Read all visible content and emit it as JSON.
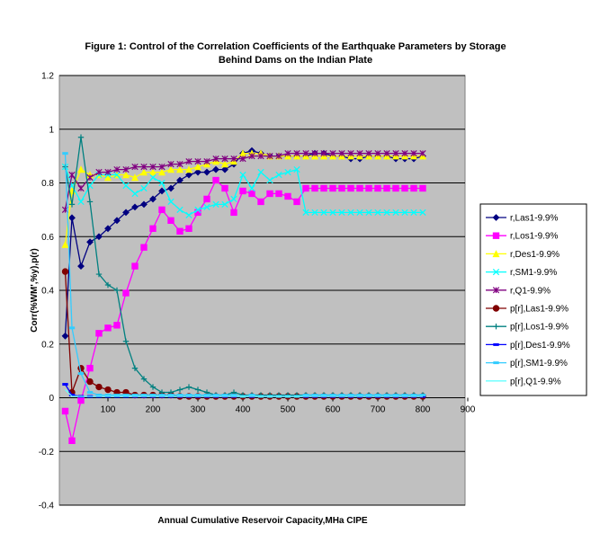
{
  "chart_data": {
    "type": "line",
    "title_line1": "Figure 1: Control of the Correlation Coefficients of  the Earthquake Parameters by Storage",
    "title_line2": "Behind Dams on the Indian Plate",
    "xlabel": "Annual Cumulative Reservoir Capacity,MHa CIPE",
    "ylabel": "Corr(%WM',%y),p(r)",
    "xlim": [
      0,
      900
    ],
    "ylim": [
      -0.4,
      1.2
    ],
    "xticks": [
      100,
      200,
      300,
      400,
      500,
      600,
      700,
      800,
      900
    ],
    "yticks": [
      -0.4,
      -0.2,
      0,
      0.2,
      0.4,
      0.6,
      0.8,
      1,
      1.2
    ],
    "ytick_labels": [
      "-0.4",
      "-0.2",
      "0",
      "0.2",
      "0.4",
      "0.6",
      "0.8",
      "1",
      "1.2"
    ],
    "plot_background": "#c0c0c0",
    "gridlines": "horizontal",
    "legend_position": "right",
    "x": [
      5,
      20,
      40,
      60,
      80,
      100,
      120,
      140,
      160,
      180,
      200,
      220,
      240,
      260,
      280,
      300,
      320,
      340,
      360,
      380,
      400,
      420,
      440,
      460,
      480,
      500,
      520,
      540,
      560,
      580,
      600,
      620,
      640,
      660,
      680,
      700,
      720,
      740,
      760,
      780,
      800
    ],
    "series": [
      {
        "name": "r,Las1-9.9%",
        "color": "#000080",
        "marker": "diamond",
        "values": [
          0.23,
          0.67,
          0.49,
          0.58,
          0.6,
          0.63,
          0.66,
          0.69,
          0.71,
          0.72,
          0.74,
          0.77,
          0.78,
          0.81,
          0.83,
          0.84,
          0.84,
          0.85,
          0.85,
          0.87,
          0.91,
          0.92,
          0.91,
          0.9,
          0.9,
          0.9,
          0.9,
          0.9,
          0.91,
          0.91,
          0.9,
          0.9,
          0.89,
          0.89,
          0.9,
          0.9,
          0.9,
          0.89,
          0.89,
          0.89,
          0.9
        ]
      },
      {
        "name": "r,Los1-9.9%",
        "color": "#ff00ff",
        "marker": "square",
        "values": [
          -0.05,
          -0.16,
          -0.01,
          0.11,
          0.24,
          0.26,
          0.27,
          0.39,
          0.49,
          0.56,
          0.63,
          0.7,
          0.66,
          0.62,
          0.63,
          0.69,
          0.74,
          0.81,
          0.78,
          0.69,
          0.77,
          0.76,
          0.73,
          0.76,
          0.76,
          0.75,
          0.73,
          0.78,
          0.78,
          0.78,
          0.78,
          0.78,
          0.78,
          0.78,
          0.78,
          0.78,
          0.78,
          0.78,
          0.78,
          0.78,
          0.78
        ]
      },
      {
        "name": "r,Des1-9.9%",
        "color": "#ffff00",
        "marker": "triangle",
        "values": [
          0.57,
          0.77,
          0.85,
          0.83,
          0.83,
          0.82,
          0.83,
          0.83,
          0.82,
          0.84,
          0.84,
          0.84,
          0.85,
          0.85,
          0.85,
          0.86,
          0.87,
          0.88,
          0.87,
          0.88,
          0.91,
          0.91,
          0.91,
          0.9,
          0.9,
          0.9,
          0.9,
          0.9,
          0.9,
          0.9,
          0.9,
          0.9,
          0.9,
          0.9,
          0.9,
          0.9,
          0.9,
          0.9,
          0.9,
          0.9,
          0.9
        ]
      },
      {
        "name": "r,SM1-9.9%",
        "color": "#00ffff",
        "marker": "x",
        "values": [
          0.86,
          0.79,
          0.73,
          0.79,
          0.83,
          0.83,
          0.83,
          0.79,
          0.76,
          0.78,
          0.82,
          0.8,
          0.73,
          0.7,
          0.68,
          0.7,
          0.71,
          0.72,
          0.72,
          0.74,
          0.83,
          0.78,
          0.84,
          0.81,
          0.83,
          0.84,
          0.85,
          0.69,
          0.69,
          0.69,
          0.69,
          0.69,
          0.69,
          0.69,
          0.69,
          0.69,
          0.69,
          0.69,
          0.69,
          0.69,
          0.69
        ]
      },
      {
        "name": "r,Q1-9.9%",
        "color": "#800080",
        "marker": "star",
        "values": [
          0.7,
          0.83,
          0.78,
          0.82,
          0.84,
          0.84,
          0.85,
          0.85,
          0.86,
          0.86,
          0.86,
          0.86,
          0.87,
          0.87,
          0.88,
          0.88,
          0.88,
          0.89,
          0.89,
          0.89,
          0.89,
          0.9,
          0.9,
          0.9,
          0.9,
          0.91,
          0.91,
          0.91,
          0.91,
          0.91,
          0.91,
          0.91,
          0.91,
          0.91,
          0.91,
          0.91,
          0.91,
          0.91,
          0.91,
          0.91,
          0.91
        ]
      },
      {
        "name": "p[r],Las1-9.9%",
        "color": "#800000",
        "marker": "circle",
        "values": [
          0.47,
          0.02,
          0.11,
          0.06,
          0.04,
          0.03,
          0.02,
          0.02,
          0.01,
          0.01,
          0.01,
          0.01,
          0.01,
          0.005,
          0.005,
          0.005,
          0.005,
          0.005,
          0.005,
          0.005,
          0.005,
          0.005,
          0.005,
          0.005,
          0.005,
          0.005,
          0.005,
          0.005,
          0.005,
          0.005,
          0.005,
          0.005,
          0.005,
          0.005,
          0.005,
          0.005,
          0.005,
          0.005,
          0.005,
          0.005,
          0.005
        ]
      },
      {
        "name": "p[r],Los1-9.9%",
        "color": "#008080",
        "marker": "plus",
        "values": [
          0.86,
          0.72,
          0.97,
          0.73,
          0.46,
          0.42,
          0.4,
          0.21,
          0.11,
          0.07,
          0.04,
          0.02,
          0.02,
          0.03,
          0.04,
          0.03,
          0.02,
          0.01,
          0.01,
          0.02,
          0.01,
          0.01,
          0.01,
          0.01,
          0.01,
          0.01,
          0.01,
          0.01,
          0.01,
          0.01,
          0.01,
          0.01,
          0.01,
          0.01,
          0.01,
          0.01,
          0.01,
          0.01,
          0.01,
          0.01,
          0.01
        ]
      },
      {
        "name": "p[r],Des1-9.9%",
        "color": "#0000ff",
        "marker": "dash",
        "values": [
          0.05,
          0.01,
          0.005,
          0.005,
          0.005,
          0.005,
          0.005,
          0.005,
          0.005,
          0.005,
          0.005,
          0.005,
          0.005,
          0.005,
          0.005,
          0.005,
          0.005,
          0.005,
          0.005,
          0.005,
          0.005,
          0.005,
          0.005,
          0.005,
          0.005,
          0.005,
          0.005,
          0.005,
          0.005,
          0.005,
          0.005,
          0.005,
          0.005,
          0.005,
          0.005,
          0.005,
          0.005,
          0.005,
          0.005,
          0.005,
          0.005
        ]
      },
      {
        "name": "p[r],SM1-9.9%",
        "color": "#33ccff",
        "marker": "dash",
        "values": [
          0.91,
          0.26,
          0.09,
          0.02,
          0.01,
          0.01,
          0.01,
          0.01,
          0.01,
          0.01,
          0.01,
          0.01,
          0.01,
          0.01,
          0.01,
          0.01,
          0.01,
          0.01,
          0.01,
          0.01,
          0.005,
          0.01,
          0.005,
          0.005,
          0.005,
          0.005,
          0.005,
          0.01,
          0.01,
          0.01,
          0.01,
          0.01,
          0.01,
          0.01,
          0.01,
          0.01,
          0.01,
          0.01,
          0.01,
          0.01,
          0.01
        ]
      },
      {
        "name": "p[r],Q1-9.9%",
        "color": "#66ffff",
        "marker": "none",
        "values": [
          0.03,
          0.005,
          0.005,
          0.005,
          0.005,
          0.005,
          0.005,
          0.005,
          0.005,
          0.005,
          0.005,
          0.005,
          0.005,
          0.005,
          0.005,
          0.005,
          0.005,
          0.005,
          0.005,
          0.005,
          0.005,
          0.005,
          0.005,
          0.005,
          0.005,
          0.005,
          0.005,
          0.005,
          0.005,
          0.005,
          0.005,
          0.005,
          0.005,
          0.005,
          0.005,
          0.005,
          0.005,
          0.005,
          0.005,
          0.005,
          0.005
        ]
      }
    ]
  }
}
